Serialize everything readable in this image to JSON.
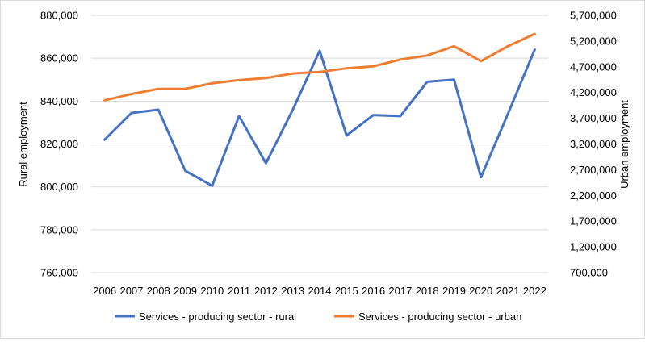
{
  "chart_data": {
    "type": "line",
    "title": "",
    "categories": [
      "2006",
      "2007",
      "2008",
      "2009",
      "2010",
      "2011",
      "2012",
      "2013",
      "2014",
      "2015",
      "2016",
      "2017",
      "2018",
      "2019",
      "2020",
      "2021",
      "2022"
    ],
    "ylabel_left": "Rural employment",
    "ylabel_right": "Urban employment",
    "ylim_left": [
      760000,
      880000
    ],
    "ylim_right": [
      700000,
      5700000
    ],
    "yticks_left": [
      "760,000",
      "780,000",
      "800,000",
      "820,000",
      "840,000",
      "860,000",
      "880,000"
    ],
    "yticks_right": [
      "700,000",
      "1,200,000",
      "1,700,000",
      "2,200,000",
      "2,700,000",
      "3,200,000",
      "3,700,000",
      "4,200,000",
      "4,700,000",
      "5,200,000",
      "5,700,000"
    ],
    "grid": true,
    "legend_position": "bottom",
    "series": [
      {
        "name": "Services - producing sector - rural",
        "axis": "left",
        "color": "#4472C4",
        "values": [
          822000,
          834500,
          836000,
          807500,
          800500,
          833000,
          811000,
          836000,
          863500,
          824000,
          833500,
          833000,
          849000,
          850000,
          804500,
          834000,
          864000
        ]
      },
      {
        "name": "Services - producing sector - urban",
        "axis": "right",
        "color": "#ED7D31",
        "values": [
          4050000,
          4170000,
          4270000,
          4270000,
          4380000,
          4440000,
          4480000,
          4570000,
          4600000,
          4670000,
          4710000,
          4840000,
          4920000,
          5100000,
          4810000,
          5100000,
          5340000
        ]
      }
    ]
  }
}
